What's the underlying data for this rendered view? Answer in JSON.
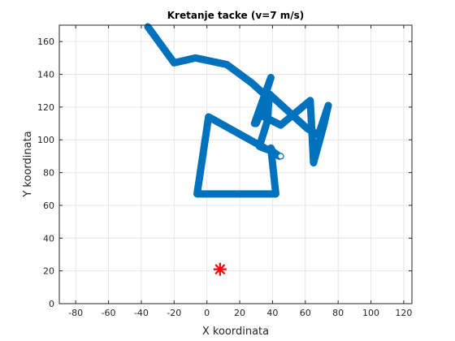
{
  "chart_data": {
    "type": "line",
    "title": "Kretanje tacke (v=7 m/s)",
    "xlabel": "X koordinata",
    "ylabel": "Y koordinata",
    "xlim": [
      -90,
      125
    ],
    "ylim": [
      0,
      170
    ],
    "xticks": [
      -80,
      -60,
      -40,
      -20,
      0,
      20,
      40,
      60,
      80,
      100,
      120
    ],
    "yticks": [
      0,
      20,
      40,
      60,
      80,
      100,
      120,
      140,
      160
    ],
    "grid": true,
    "series": [
      {
        "points": [
          [
            -36,
            169
          ],
          [
            -20,
            147
          ],
          [
            -7,
            150
          ],
          [
            12,
            146
          ],
          [
            27,
            135
          ],
          [
            37,
            126
          ],
          [
            30,
            110
          ],
          [
            39,
            138
          ],
          [
            29,
            110
          ],
          [
            33,
            115
          ],
          [
            45,
            109
          ],
          [
            63,
            124
          ],
          [
            65,
            86
          ],
          [
            71,
            108
          ],
          [
            74,
            121
          ],
          [
            68,
            103
          ],
          [
            61,
            107
          ],
          [
            38,
            128
          ],
          [
            37,
            112
          ],
          [
            32,
            96
          ],
          [
            37,
            94
          ],
          [
            1,
            114
          ],
          [
            -6,
            67
          ],
          [
            42,
            67
          ],
          [
            39,
            95
          ],
          [
            40,
            93
          ],
          [
            44,
            90
          ]
        ],
        "color": "#0072bd"
      }
    ],
    "target": {
      "x": 8,
      "y": 21,
      "color": "#ff0000"
    },
    "end_marker": {
      "x": 45,
      "y": 90
    }
  }
}
